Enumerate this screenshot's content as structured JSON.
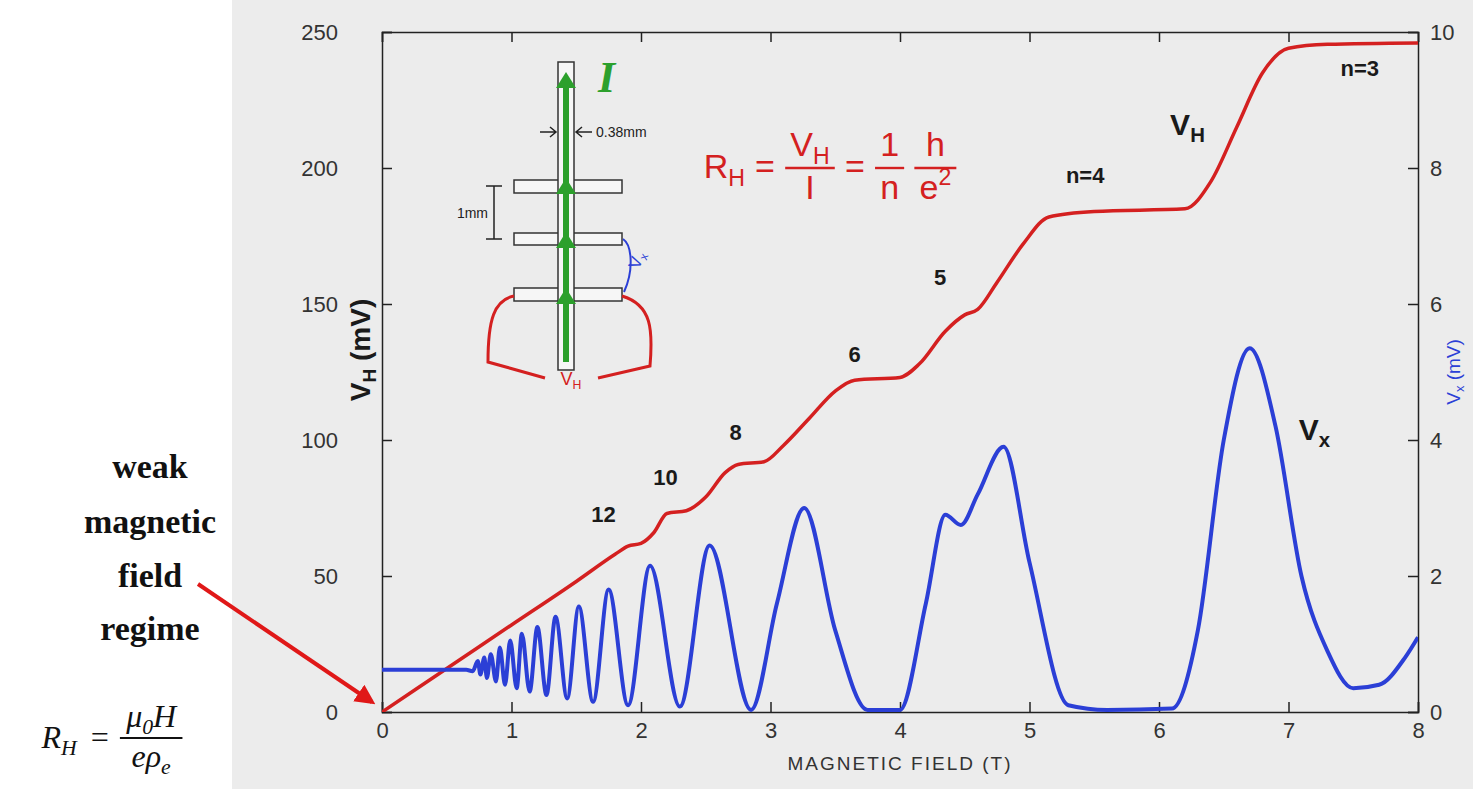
{
  "chart_data": {
    "type": "line",
    "xlabel": "MAGNETIC FIELD (T)",
    "ylabel": [
      "V",
      {
        "sub": "H"
      },
      " (mV)"
    ],
    "y2label": [
      "V",
      {
        "sub": "x"
      },
      " (mV)"
    ],
    "xlim": [
      0,
      8
    ],
    "xticks": [
      0,
      1,
      2,
      3,
      4,
      5,
      6,
      7,
      8
    ],
    "ylim": [
      0,
      250
    ],
    "yticks": [
      0,
      50,
      100,
      150,
      200,
      250
    ],
    "y2lim": [
      0,
      10
    ],
    "y2ticks": [
      0,
      2,
      4,
      6,
      8,
      10
    ],
    "series": [
      {
        "color": "#d42020",
        "x": [
          0,
          0.5,
          1.0,
          1.5,
          1.8,
          1.9,
          2.0,
          2.1,
          2.2,
          2.35,
          2.5,
          2.65,
          2.75,
          2.95,
          3.1,
          3.3,
          3.5,
          3.65,
          4.0,
          4.15,
          4.35,
          4.5,
          4.6,
          4.75,
          4.95,
          5.15,
          5.5,
          6.2,
          6.4,
          6.6,
          6.8,
          7.0,
          7.3,
          8.0
        ],
        "values": [
          0,
          16,
          32,
          48,
          58,
          61,
          62,
          66,
          73,
          74,
          79,
          88,
          91,
          92,
          98,
          108,
          118,
          122,
          123,
          128,
          140,
          146,
          148,
          158,
          172,
          182,
          184,
          185,
          195,
          215,
          235,
          244,
          245.5,
          246
        ]
      },
      {
        "color": "#2b3fd6",
        "axis": "y2",
        "x": [
          0,
          0.3,
          0.55,
          0.65,
          0.7,
          0.74,
          0.76,
          0.79,
          0.81,
          0.84,
          0.88,
          0.91,
          0.95,
          0.99,
          1.04,
          1.08,
          1.14,
          1.2,
          1.27,
          1.34,
          1.43,
          1.52,
          1.63,
          1.75,
          1.9,
          2.07,
          2.3,
          2.53,
          2.85,
          3.05,
          3.26,
          3.5,
          3.75,
          4.0,
          4.2,
          4.35,
          4.47,
          4.6,
          4.8,
          5.0,
          5.3,
          5.6,
          6.1,
          6.3,
          6.5,
          6.7,
          6.9,
          7.1,
          7.3,
          7.5,
          7.7,
          7.9,
          8.0
        ],
        "values": [
          0.62,
          0.62,
          0.62,
          0.62,
          0.6,
          0.75,
          0.55,
          0.8,
          0.5,
          0.85,
          0.45,
          0.95,
          0.4,
          1.05,
          0.35,
          1.15,
          0.3,
          1.25,
          0.25,
          1.4,
          0.2,
          1.55,
          0.15,
          1.8,
          0.1,
          2.15,
          0.08,
          2.45,
          0.03,
          1.6,
          3.0,
          1.2,
          0.03,
          0.03,
          1.6,
          2.9,
          2.75,
          3.2,
          3.9,
          2.2,
          0.1,
          0.03,
          0.05,
          1.2,
          4.0,
          5.35,
          4.2,
          2.0,
          0.9,
          0.35,
          0.4,
          0.8,
          1.1
        ]
      }
    ],
    "annotations": [
      {
        "text": [
          "n=3"
        ],
        "x": 7.55,
        "y": 234
      },
      {
        "text": [
          "n=4"
        ],
        "x": 5.43,
        "y": 194.5
      },
      {
        "text": [
          "5"
        ],
        "x": 4.31,
        "y": 157
      },
      {
        "text": [
          "6"
        ],
        "x": 3.65,
        "y": 128.7
      },
      {
        "text": [
          "8"
        ],
        "x": 2.73,
        "y": 100
      },
      {
        "text": [
          "10"
        ],
        "x": 2.19,
        "y": 83.5
      },
      {
        "text": [
          "12"
        ],
        "x": 1.71,
        "y": 70
      },
      {
        "text": [
          "V",
          {
            "sub": "H"
          }
        ],
        "x": 6.22,
        "y": 212
      },
      {
        "text": [
          "V",
          {
            "sub": "x"
          }
        ],
        "x": 7.2,
        "y": 4.0,
        "axis": "y2"
      }
    ],
    "formula": [
      {
        "text": [
          "R",
          {
            "sub": "H"
          }
        ]
      },
      {
        "text": [
          "="
        ]
      },
      {
        "num": [
          "V",
          {
            "sub": "H"
          }
        ],
        "den": [
          "I"
        ]
      },
      {
        "text": [
          "="
        ]
      },
      {
        "num": [
          "1"
        ],
        "den": [
          "n"
        ]
      },
      {
        "num": [
          "h"
        ],
        "den": [
          "e",
          {
            "sup": "2"
          }
        ]
      }
    ],
    "inset": {
      "current": [
        "I"
      ],
      "width": [
        "0.38mm"
      ],
      "spacing": [
        "1mm"
      ],
      "vx": [
        "V",
        {
          "sub": "x"
        }
      ],
      "vh": [
        "V",
        {
          "sub": "H"
        }
      ]
    },
    "side_note": {
      "lines": [
        "weak",
        "magnetic",
        "field",
        "regime"
      ],
      "formula": [
        {
          "text": [
            "R",
            {
              "sub": "H"
            }
          ]
        },
        {
          "text": [
            "="
          ]
        },
        {
          "num": [
            "μ",
            {
              "sub": "0"
            },
            "H"
          ],
          "den": [
            "e",
            "ρ",
            {
              "sub": "e"
            }
          ]
        }
      ]
    }
  }
}
